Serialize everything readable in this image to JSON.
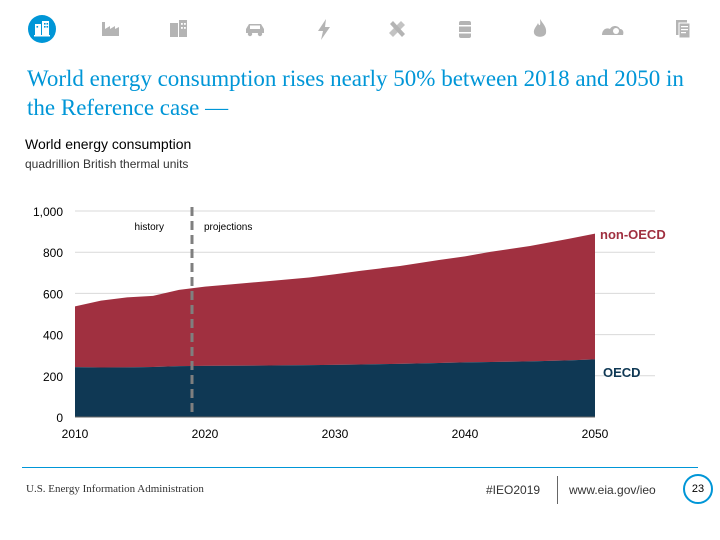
{
  "colors": {
    "accent": "#0096D7",
    "non_oecd": "#A03040",
    "oecd": "#0F3854",
    "icon_gray": "#B4B4B4"
  },
  "nav_icons": [
    "building-icon",
    "industry-icon",
    "buildings-icon",
    "car-icon",
    "electricity-icon",
    "tools-icon",
    "oil-barrel-icon",
    "flame-icon",
    "coal-icon",
    "document-icon"
  ],
  "headline": "World energy consumption rises nearly 50% between 2018 and 2050 in the Reference case —",
  "chart_data": {
    "type": "area",
    "stacked": true,
    "title": "World energy consumption",
    "subtitle": "quadrillion British thermal units",
    "x": [
      2010,
      2012,
      2014,
      2016,
      2018,
      2020,
      2022,
      2025,
      2028,
      2030,
      2032,
      2035,
      2038,
      2040,
      2042,
      2045,
      2048,
      2050
    ],
    "series": [
      {
        "name": "OECD",
        "values": [
          242,
          240,
          241,
          243,
          247,
          248,
          249,
          250,
          252,
          253,
          255,
          258,
          262,
          265,
          267,
          270,
          275,
          280
        ]
      },
      {
        "name": "non-OECD",
        "values": [
          295,
          325,
          340,
          345,
          370,
          385,
          395,
          410,
          425,
          440,
          455,
          475,
          500,
          515,
          535,
          560,
          590,
          610
        ]
      }
    ],
    "xticks": [
      "2010",
      "2020",
      "2030",
      "2040",
      "2050"
    ],
    "yticks": [
      "0",
      "200",
      "400",
      "600",
      "800",
      "1,000"
    ],
    "ylim": [
      0,
      1000
    ],
    "xlim": [
      2010,
      2050
    ],
    "grid": true,
    "divider_year": 2019,
    "annotations": {
      "history": "history",
      "projections": "projections"
    },
    "series_labels": {
      "non_oecd": "non-OECD",
      "oecd": "OECD"
    }
  },
  "footer": {
    "source": "U.S. Energy Information Administration",
    "hashtag": "#IEO2019",
    "url": "www.eia.gov/ieo",
    "page": "23"
  }
}
